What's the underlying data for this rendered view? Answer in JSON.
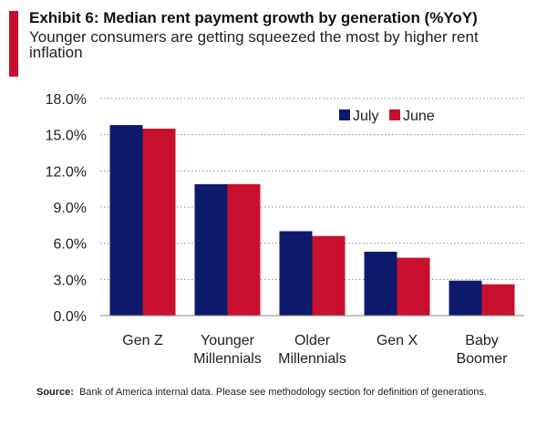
{
  "header": {
    "title": "Exhibit 6: Median rent payment growth by generation (%YoY)",
    "subtitle": "Younger consumers are getting squeezed the most by higher rent inflation"
  },
  "footer": {
    "source_label": "Source:",
    "source_text": "Bank of America internal data. Please see methodology section  for definition of generations."
  },
  "colors": {
    "accent": "#c8102e",
    "july": "#0d1a6b",
    "june": "#c8102e"
  },
  "chart_data": {
    "type": "bar",
    "title": "Median rent payment growth by generation (%YoY)",
    "xlabel": "",
    "ylabel": "",
    "ylim": [
      0,
      18
    ],
    "yticks": [
      0,
      3,
      6,
      9,
      12,
      15,
      18
    ],
    "ytick_labels": [
      "0.0%",
      "3.0%",
      "6.0%",
      "9.0%",
      "12.0%",
      "15.0%",
      "18.0%"
    ],
    "grid": true,
    "legend": "top-right",
    "categories": [
      [
        "Gen Z"
      ],
      [
        "Younger",
        "Millennials"
      ],
      [
        "Older",
        "Millennials"
      ],
      [
        "Gen X"
      ],
      [
        "Baby",
        "Boomer"
      ]
    ],
    "series": [
      {
        "name": "July",
        "color": "#0d1a6b",
        "values": [
          15.8,
          10.9,
          7.0,
          5.3,
          2.9
        ]
      },
      {
        "name": "June",
        "color": "#c8102e",
        "values": [
          15.5,
          10.9,
          6.6,
          4.8,
          2.6
        ]
      }
    ]
  }
}
